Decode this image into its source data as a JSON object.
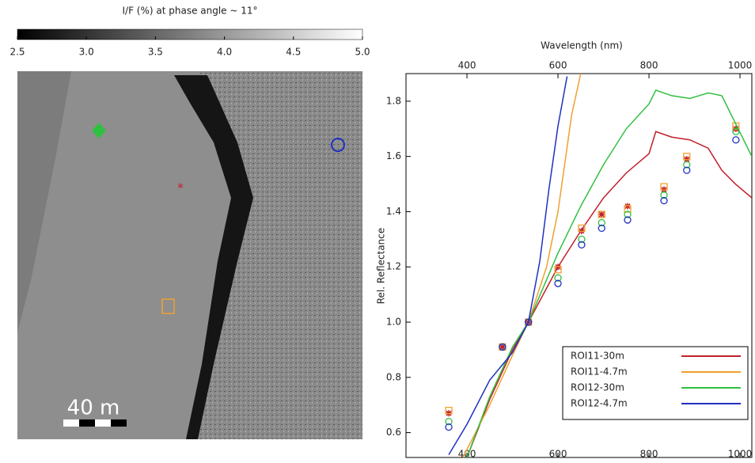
{
  "image": {
    "colorbar_title": "I/F (%) at phase angle ~ 11°",
    "colorbar_lim": [
      2.5,
      5.0
    ],
    "colorbar_ticks": [
      2.5,
      {
        "value": 3,
        "label": "3.0"
      },
      3.5,
      {
        "value": 4,
        "label": "4.0"
      },
      4.5,
      {
        "value": 5,
        "label": "5.0"
      }
    ],
    "scale_label": "40 m"
  },
  "chart_data": {
    "type": "line",
    "xlabel": "Wavelength (nm)",
    "ylabel": "Rel. Reflectance",
    "xlim": [
      266,
      1026
    ],
    "xticks": [
      400,
      600,
      800,
      1000
    ],
    "ylim": [
      0.51,
      1.9
    ],
    "yticks": [
      0.6,
      0.8,
      {
        "value": 1,
        "label": "1.0"
      },
      1.2,
      1.4,
      1.6,
      1.8
    ],
    "legend": "lower right",
    "point_x": [
      360,
      478,
      535,
      600,
      652,
      696,
      753,
      833,
      883,
      991
    ],
    "series": [
      {
        "name": "ROI11-30m",
        "color": "#c0202a",
        "marker": "star",
        "x": [
          400,
          450,
          500,
          535,
          600,
          650,
          700,
          750,
          800,
          815,
          850,
          890,
          930,
          960,
          990,
          1026
        ],
        "values": [
          0.51,
          0.72,
          0.9,
          1.0,
          1.2,
          1.33,
          1.45,
          1.54,
          1.61,
          1.69,
          1.67,
          1.66,
          1.63,
          1.55,
          1.5,
          1.45
        ],
        "point_values": [
          0.67,
          0.91,
          1.0,
          1.2,
          1.33,
          1.39,
          1.42,
          1.48,
          1.59,
          1.7
        ]
      },
      {
        "name": "ROI11-4.7m",
        "color": "#f0a030",
        "marker": "square",
        "x": [
          391,
          450,
          500,
          535,
          575,
          600,
          630,
          650
        ],
        "values": [
          0.51,
          0.7,
          0.88,
          1.0,
          1.2,
          1.4,
          1.75,
          1.9
        ],
        "point_values": [
          0.68,
          0.91,
          1.0,
          1.19,
          1.34,
          1.39,
          1.41,
          1.49,
          1.6,
          1.71
        ]
      },
      {
        "name": "ROI12-30m",
        "color": "#30c040",
        "marker": "circle",
        "x": [
          400,
          450,
          500,
          535,
          600,
          650,
          700,
          750,
          800,
          815,
          850,
          890,
          930,
          960,
          990,
          1026
        ],
        "values": [
          0.51,
          0.73,
          0.91,
          1.0,
          1.25,
          1.42,
          1.57,
          1.7,
          1.79,
          1.84,
          1.82,
          1.81,
          1.83,
          1.82,
          1.72,
          1.6
        ],
        "point_values": [
          0.64,
          0.91,
          1.0,
          1.16,
          1.3,
          1.36,
          1.39,
          1.46,
          1.57,
          1.69
        ]
      },
      {
        "name": "ROI12-4.7m",
        "color": "#2030c0",
        "marker": "circle",
        "x": [
          360,
          400,
          450,
          500,
          535,
          560,
          580,
          600,
          620
        ],
        "values": [
          0.52,
          0.63,
          0.79,
          0.89,
          1.0,
          1.22,
          1.48,
          1.71,
          1.89
        ],
        "point_values": [
          0.62,
          0.91,
          1.0,
          1.14,
          1.28,
          1.34,
          1.37,
          1.44,
          1.55,
          1.66
        ]
      }
    ]
  }
}
